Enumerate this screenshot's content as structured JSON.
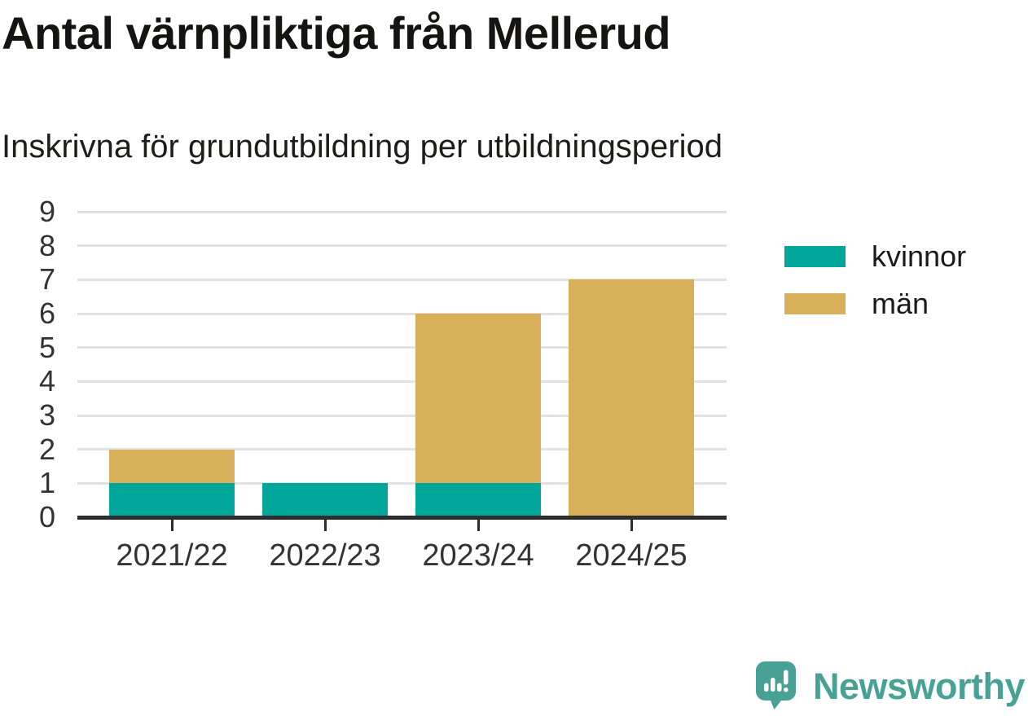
{
  "header": {
    "title": "Antal värnpliktiga från Mellerud",
    "subtitle": "Inskrivna för grundutbildning per utbildningsperiod"
  },
  "chart_data": {
    "type": "bar",
    "stacked": true,
    "title": "Antal värnpliktiga från Mellerud",
    "subtitle": "Inskrivna för grundutbildning per utbildningsperiod",
    "categories": [
      "2021/22",
      "2022/23",
      "2023/24",
      "2024/25"
    ],
    "series": [
      {
        "name": "kvinnor",
        "color": "#00a69a",
        "values": [
          1,
          1,
          1,
          0
        ]
      },
      {
        "name": "män",
        "color": "#d8b05a",
        "values": [
          1,
          0,
          5,
          7
        ]
      }
    ],
    "totals": [
      2,
      1,
      6,
      7
    ],
    "ylim": [
      0,
      9
    ],
    "yticks": [
      0,
      1,
      2,
      3,
      4,
      5,
      6,
      7,
      8,
      9
    ],
    "xlabel": "",
    "ylabel": "",
    "grid": true,
    "legend_position": "right"
  },
  "colors": {
    "grid": "#e2e2e2",
    "axis": "#2d2d2d",
    "tick_label": "#333333",
    "title_text": "#151412",
    "brand_teal": "#47a295"
  },
  "branding": {
    "wordmark": "Newsworthy"
  }
}
